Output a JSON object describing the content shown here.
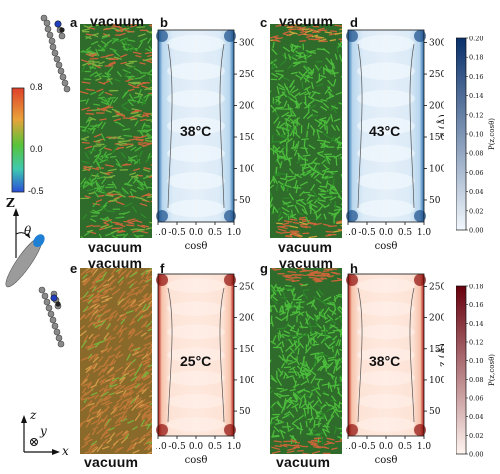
{
  "panels": {
    "a": {
      "label": "a",
      "top_text": "vacuum",
      "bottom_text": "vacuum"
    },
    "b": {
      "label": "b",
      "temperature": "38°C",
      "xlabel": "cosθ",
      "xticks": [
        "-1.0",
        "-0.5",
        "0.0",
        "0.5",
        "1.0"
      ],
      "yticks": [
        "50",
        "100",
        "150",
        "200",
        "250",
        "300"
      ],
      "ylim": [
        15,
        320
      ]
    },
    "c": {
      "label": "c",
      "top_text": "vacuum",
      "bottom_text": "vacuum"
    },
    "d": {
      "label": "d",
      "temperature": "43°C",
      "xlabel": "cosθ",
      "ylabel": "z (Å)",
      "xticks": [
        "-1.0",
        "-0.5",
        "0.0",
        "0.5",
        "1.0"
      ],
      "yticks": [
        "50",
        "100",
        "150",
        "200",
        "250",
        "300"
      ],
      "ylim": [
        15,
        320
      ]
    },
    "e": {
      "label": "e",
      "top_text": "vacuum",
      "bottom_text": "vacuum"
    },
    "f": {
      "label": "f",
      "temperature": "25°C",
      "xlabel": "cosθ",
      "xticks": [
        "-1.0",
        "-0.5",
        "0.0",
        "0.5",
        "1.0"
      ],
      "yticks": [
        "50",
        "100",
        "150",
        "200",
        "250"
      ],
      "ylim": [
        10,
        270
      ]
    },
    "g": {
      "label": "g",
      "top_text": "vacuum",
      "bottom_text": "vacuum"
    },
    "h": {
      "label": "h",
      "temperature": "38°C",
      "xlabel": "cosθ",
      "ylabel": "z (Å)",
      "xticks": [
        "-1.0",
        "-0.5",
        "0.0",
        "0.5",
        "1.0"
      ],
      "yticks": [
        "50",
        "100",
        "150",
        "200",
        "250"
      ],
      "ylim": [
        10,
        270
      ]
    }
  },
  "orientation_colorbar": {
    "ticks": [
      "0.8",
      "0.0",
      "-0.5"
    ]
  },
  "blue_colorbar": {
    "label": "P(z,cosθ)",
    "ticks": [
      "0.00",
      "0.02",
      "0.04",
      "0.06",
      "0.08",
      "0.10",
      "0.12",
      "0.14",
      "0.16",
      "0.18",
      "0.20"
    ],
    "color_low": "#f2f8fd",
    "color_high": "#08306b"
  },
  "red_colorbar": {
    "label": "P(z,cosθ)",
    "ticks": [
      "0.00",
      "0.02",
      "0.04",
      "0.06",
      "0.08",
      "0.10",
      "0.12",
      "0.14",
      "0.16",
      "0.18"
    ],
    "color_low": "#fff5f0",
    "color_high": "#67000d"
  },
  "axes_glyph": {
    "z": "z",
    "y": "y",
    "x": "x"
  },
  "director_glyph": {
    "z": "Z",
    "theta": "θ"
  }
}
